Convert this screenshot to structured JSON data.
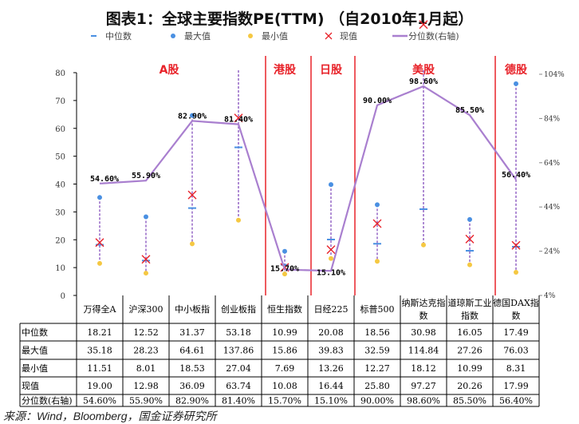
{
  "title": "图表1：全球主要指数PE(TTM) （自2010年1月起）",
  "source": "来源：Wind，Bloomberg，国金证券研究所",
  "legend": [
    {
      "label": "中位数",
      "icon": "dash",
      "color": "#4a90e2"
    },
    {
      "label": "最大值",
      "icon": "dot",
      "color": "#4a90e2"
    },
    {
      "label": "最小值",
      "icon": "dot",
      "color": "#f5c842"
    },
    {
      "label": "现值",
      "icon": "x",
      "color": "#e8232a"
    },
    {
      "label": "分位数(右轴)",
      "icon": "line",
      "color": "#a97fcf"
    }
  ],
  "groups": [
    {
      "label": "A股",
      "span": [
        0,
        3
      ]
    },
    {
      "label": "港股",
      "span": [
        4,
        4
      ]
    },
    {
      "label": "日股",
      "span": [
        5,
        5
      ]
    },
    {
      "label": "美股",
      "span": [
        6,
        8
      ]
    },
    {
      "label": "德股",
      "span": [
        9,
        9
      ]
    }
  ],
  "chart_data": {
    "type": "line",
    "categories": [
      "万得全A",
      "沪深300",
      "中小板指",
      "创业板指",
      "恒生指数",
      "日经225",
      "标普500",
      "纳斯达克指数",
      "道琼斯工业指数",
      "德国DAX指数"
    ],
    "series": [
      {
        "name": "中位数",
        "values": [
          18.21,
          12.52,
          31.37,
          53.18,
          10.99,
          20.08,
          18.56,
          30.98,
          16.05,
          17.49
        ]
      },
      {
        "name": "最大值",
        "values": [
          35.18,
          28.23,
          64.61,
          137.86,
          15.86,
          39.83,
          32.59,
          114.84,
          27.26,
          76.03
        ]
      },
      {
        "name": "最小值",
        "values": [
          11.51,
          8.01,
          18.53,
          27.04,
          7.69,
          13.26,
          12.27,
          18.12,
          10.99,
          8.31
        ]
      },
      {
        "name": "现值",
        "values": [
          19.0,
          12.98,
          36.09,
          63.74,
          10.08,
          16.44,
          25.8,
          97.27,
          20.26,
          17.99
        ]
      },
      {
        "name": "分位数(右轴)",
        "values": [
          54.6,
          55.9,
          82.9,
          81.4,
          15.7,
          15.1,
          90.0,
          98.6,
          85.5,
          56.4
        ]
      }
    ],
    "percentile_labels": [
      "54.60%",
      "55.90%",
      "82.90%",
      "81.40%",
      "15.70%",
      "15.10%",
      "90.00%",
      "98.60%",
      "85.50%",
      "56.40%"
    ],
    "ylim": [
      0,
      80
    ],
    "yticks": [
      "0",
      "10",
      "20",
      "30",
      "40",
      "50",
      "60",
      "70",
      "80"
    ],
    "y2lim": [
      4,
      104
    ],
    "y2ticks": [
      "4%",
      "24%",
      "44%",
      "64%",
      "84%",
      "104%"
    ]
  },
  "table": {
    "header_names": [
      "万得全A",
      "沪深300",
      "中小板指",
      "创业板指",
      "恒生指数",
      "日经225",
      "标普500",
      "纳斯达克指\n数",
      "道琼斯工业\n指数",
      "德国DAX指\n数"
    ],
    "rows": [
      {
        "label": "中位数",
        "cells": [
          "18.21",
          "12.52",
          "31.37",
          "53.18",
          "10.99",
          "20.08",
          "18.56",
          "30.98",
          "16.05",
          "17.49"
        ]
      },
      {
        "label": "最大值",
        "cells": [
          "35.18",
          "28.23",
          "64.61",
          "137.86",
          "15.86",
          "39.83",
          "32.59",
          "114.84",
          "27.26",
          "76.03"
        ]
      },
      {
        "label": "最小值",
        "cells": [
          "11.51",
          "8.01",
          "18.53",
          "27.04",
          "7.69",
          "13.26",
          "12.27",
          "18.12",
          "10.99",
          "8.31"
        ]
      },
      {
        "label": "现值",
        "cells": [
          "19.00",
          "12.98",
          "36.09",
          "63.74",
          "10.08",
          "16.44",
          "25.80",
          "97.27",
          "20.26",
          "17.99"
        ]
      },
      {
        "label": "分位数(右轴)",
        "cells": [
          "54.60%",
          "55.90%",
          "82.90%",
          "81.40%",
          "15.70%",
          "15.10%",
          "90.00%",
          "98.60%",
          "85.50%",
          "56.40%"
        ]
      }
    ]
  }
}
